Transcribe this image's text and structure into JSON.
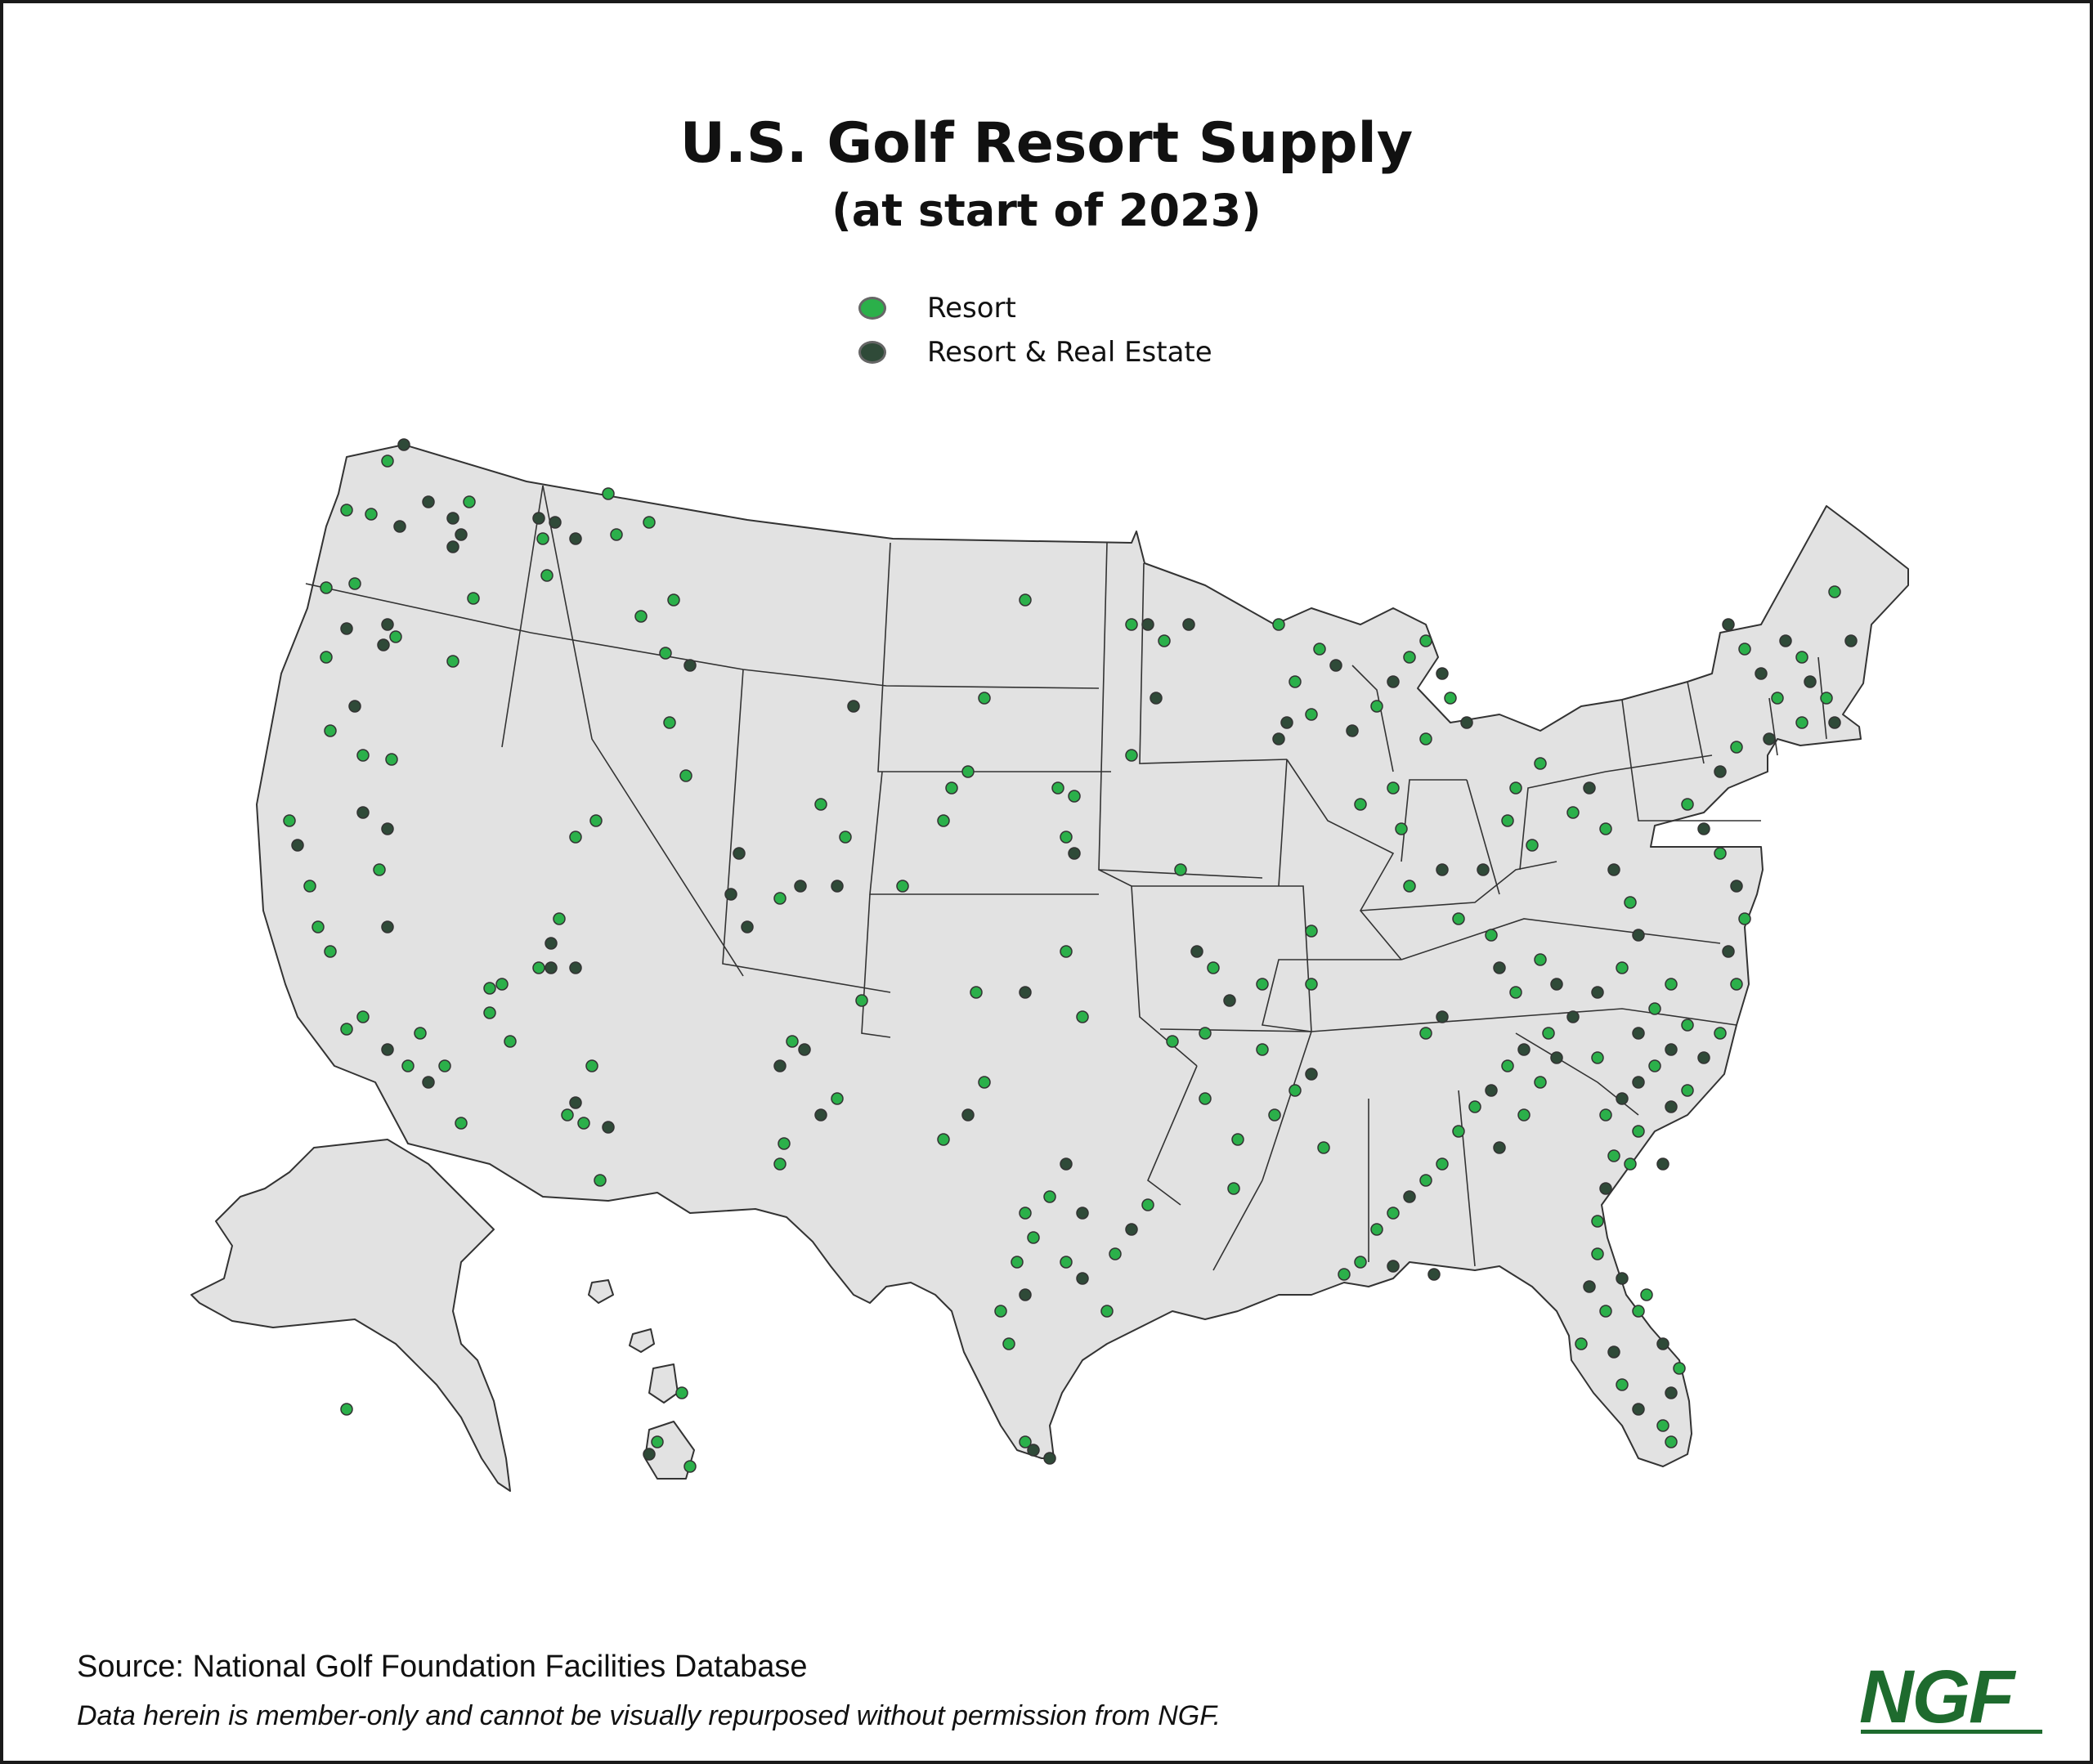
{
  "title": "U.S. Golf Resort Supply",
  "subtitle": "(at start of 2023)",
  "legend": [
    {
      "label": "Resort",
      "color": "#2bb04a"
    },
    {
      "label": "Resort & Real Estate",
      "color": "#2f4a38"
    }
  ],
  "colors": {
    "land": "#e2e2e2",
    "border": "#333333",
    "resort": "#2bb04a",
    "resort_real_estate": "#2f4a38",
    "marker_stroke": "#333333",
    "brand": "#1e6b2e"
  },
  "source": "Source: National Golf Foundation Facilities Database",
  "disclaimer": "Data herein is member-only and cannot be visually repurposed without permission from NGF.",
  "logo": "NGF"
}
